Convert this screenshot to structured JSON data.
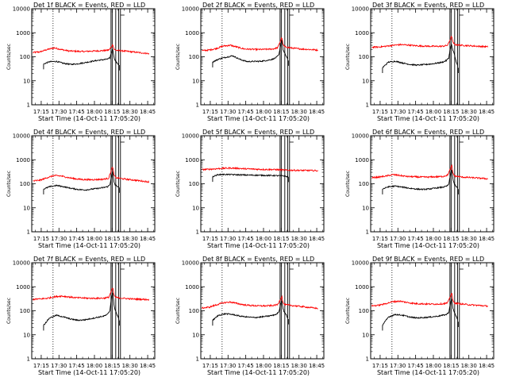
{
  "chart_data": {
    "type": "line",
    "layout": "3x3 grid of panels",
    "shared": {
      "xlabel": "Start Time (14-Oct-11 17:05:20)",
      "ylabel": "Counts/sec",
      "x_ticks": [
        "17:15",
        "17:30",
        "17:45",
        "18:00",
        "18:15",
        "18:30",
        "18:45"
      ],
      "x_tick_minutes": [
        15,
        30,
        45,
        60,
        75,
        90,
        105
      ],
      "xlim_minutes": [
        7,
        111
      ],
      "y_scale": "log",
      "ylim": [
        1,
        10000
      ],
      "y_ticks": [
        "1",
        "10",
        "100",
        "1000",
        "10000"
      ],
      "y_tick_values": [
        1,
        10,
        100,
        1000,
        10000
      ],
      "series_colors": {
        "events": "#000000",
        "lld": "#ff0000"
      },
      "marker_lines_minutes": [
        25,
        74,
        75,
        78,
        80.5,
        82
      ]
    },
    "panels": [
      {
        "title": "Det 1f BLACK = Events, RED = LLD",
        "events": {
          "x": [
            17,
            22,
            28,
            34,
            40,
            46,
            52,
            58,
            64,
            68,
            71,
            73,
            74.5,
            75.5,
            76.5,
            77.5,
            79,
            81
          ],
          "y": [
            50,
            62,
            64,
            53,
            48,
            51,
            57,
            65,
            72,
            76,
            80,
            88,
            160,
            210,
            95,
            70,
            55,
            45
          ]
        },
        "lld": {
          "x": [
            8,
            14,
            20,
            26,
            32,
            38,
            44,
            50,
            56,
            62,
            68,
            72,
            74.5,
            75.5,
            76.5,
            78,
            84,
            92,
            100,
            106
          ],
          "y": [
            150,
            160,
            200,
            235,
            200,
            175,
            170,
            165,
            170,
            175,
            180,
            190,
            260,
            330,
            210,
            185,
            175,
            160,
            145,
            135
          ]
        }
      },
      {
        "title": "Det 2f BLACK = Events, RED = LLD",
        "events": {
          "x": [
            17,
            22,
            28,
            34,
            40,
            46,
            52,
            58,
            64,
            68,
            71,
            73,
            74.5,
            75.5,
            76.5,
            77.5,
            79,
            81
          ],
          "y": [
            60,
            80,
            95,
            110,
            78,
            63,
            64,
            65,
            72,
            80,
            95,
            120,
            320,
            500,
            200,
            150,
            110,
            70
          ]
        },
        "lld": {
          "x": [
            8,
            14,
            20,
            26,
            32,
            38,
            44,
            50,
            56,
            62,
            68,
            72,
            74.5,
            75.5,
            76.5,
            78,
            84,
            92,
            100,
            106
          ],
          "y": [
            180,
            190,
            220,
            280,
            300,
            250,
            210,
            205,
            200,
            205,
            210,
            240,
            480,
            640,
            320,
            260,
            230,
            210,
            200,
            190
          ]
        }
      },
      {
        "title": "Det 3f BLACK = Events, RED = LLD",
        "events": {
          "x": [
            17,
            22,
            28,
            34,
            40,
            46,
            52,
            58,
            64,
            68,
            71,
            73,
            74.5,
            75.5,
            76.5,
            77.5,
            79,
            81
          ],
          "y": [
            35,
            60,
            65,
            55,
            48,
            45,
            47,
            50,
            55,
            60,
            70,
            90,
            260,
            300,
            180,
            140,
            70,
            35
          ]
        },
        "lld": {
          "x": [
            8,
            14,
            20,
            26,
            32,
            38,
            44,
            50,
            56,
            62,
            68,
            72,
            74.5,
            75.5,
            76.5,
            78,
            84,
            92,
            100,
            106
          ],
          "y": [
            250,
            255,
            275,
            300,
            320,
            310,
            290,
            280,
            275,
            270,
            275,
            300,
            560,
            720,
            400,
            320,
            300,
            285,
            270,
            260
          ]
        }
      },
      {
        "title": "Det 4f BLACK = Events, RED = LLD",
        "events": {
          "x": [
            17,
            22,
            28,
            34,
            40,
            46,
            52,
            58,
            64,
            68,
            71,
            73,
            74.5,
            75.5,
            76.5,
            77.5,
            79,
            81
          ],
          "y": [
            60,
            75,
            85,
            75,
            65,
            58,
            55,
            60,
            65,
            70,
            75,
            90,
            220,
            300,
            120,
            90,
            80,
            70
          ]
        },
        "lld": {
          "x": [
            8,
            14,
            20,
            26,
            32,
            38,
            44,
            50,
            56,
            62,
            68,
            72,
            74.5,
            75.5,
            76.5,
            78,
            84,
            92,
            100,
            106
          ],
          "y": [
            130,
            140,
            180,
            220,
            210,
            180,
            160,
            150,
            148,
            150,
            155,
            170,
            400,
            500,
            230,
            180,
            160,
            145,
            130,
            120
          ]
        }
      },
      {
        "title": "Det 5f BLACK = Events, RED = LLD",
        "events": {
          "x": [
            17,
            22,
            28,
            34,
            40,
            46,
            52,
            58,
            64,
            68,
            71,
            73,
            74.5,
            75.5,
            76.5,
            77.5,
            79,
            81
          ],
          "y": [
            200,
            240,
            245,
            240,
            235,
            230,
            228,
            225,
            222,
            220,
            218,
            216,
            215,
            214,
            213,
            212,
            200,
            195
          ]
        },
        "lld": {
          "x": [
            8,
            14,
            20,
            26,
            32,
            38,
            44,
            50,
            56,
            62,
            68,
            72,
            74.5,
            75.5,
            76.5,
            78,
            84,
            92,
            100,
            106
          ],
          "y": [
            390,
            400,
            420,
            440,
            450,
            440,
            420,
            410,
            400,
            395,
            390,
            385,
            380,
            378,
            375,
            370,
            365,
            360,
            355,
            350
          ]
        }
      },
      {
        "title": "Det 6f BLACK = Events, RED = LLD",
        "events": {
          "x": [
            17,
            22,
            28,
            34,
            40,
            46,
            52,
            58,
            64,
            68,
            71,
            73,
            74.5,
            75.5,
            76.5,
            77.5,
            79,
            81
          ],
          "y": [
            60,
            75,
            80,
            72,
            65,
            60,
            58,
            62,
            68,
            72,
            78,
            95,
            250,
            400,
            160,
            100,
            80,
            60
          ]
        },
        "lld": {
          "x": [
            8,
            14,
            20,
            26,
            32,
            38,
            44,
            50,
            56,
            62,
            68,
            72,
            74.5,
            75.5,
            76.5,
            78,
            84,
            92,
            100,
            106
          ],
          "y": [
            180,
            190,
            210,
            240,
            220,
            200,
            195,
            190,
            190,
            195,
            200,
            230,
            420,
            580,
            280,
            210,
            190,
            180,
            170,
            160
          ]
        }
      },
      {
        "title": "Det 7f BLACK = Events, RED = LLD",
        "events": {
          "x": [
            17,
            22,
            28,
            34,
            40,
            46,
            52,
            58,
            64,
            68,
            71,
            73,
            74.5,
            75.5,
            76.5,
            77.5,
            79,
            81
          ],
          "y": [
            25,
            50,
            65,
            55,
            45,
            40,
            42,
            48,
            55,
            60,
            70,
            100,
            400,
            550,
            180,
            110,
            70,
            40
          ]
        },
        "lld": {
          "x": [
            8,
            14,
            20,
            26,
            32,
            38,
            44,
            50,
            56,
            62,
            68,
            72,
            74.5,
            75.5,
            76.5,
            78,
            84,
            92,
            100,
            106
          ],
          "y": [
            300,
            310,
            330,
            380,
            410,
            380,
            350,
            340,
            330,
            330,
            335,
            360,
            700,
            900,
            450,
            360,
            330,
            310,
            300,
            290
          ]
        }
      },
      {
        "title": "Det 8f BLACK = Events, RED = LLD",
        "events": {
          "x": [
            17,
            22,
            28,
            34,
            40,
            46,
            52,
            58,
            64,
            68,
            71,
            73,
            74.5,
            75.5,
            76.5,
            77.5,
            79,
            81
          ],
          "y": [
            40,
            65,
            75,
            70,
            60,
            55,
            52,
            55,
            60,
            65,
            72,
            90,
            200,
            260,
            120,
            90,
            70,
            45
          ]
        },
        "lld": {
          "x": [
            8,
            14,
            20,
            26,
            32,
            38,
            44,
            50,
            56,
            62,
            68,
            72,
            74.5,
            75.5,
            76.5,
            78,
            84,
            92,
            100,
            106
          ],
          "y": [
            130,
            140,
            175,
            215,
            230,
            200,
            175,
            165,
            160,
            160,
            165,
            180,
            320,
            400,
            210,
            180,
            165,
            150,
            135,
            125
          ]
        }
      },
      {
        "title": "Det 9f BLACK = Events, RED = LLD",
        "events": {
          "x": [
            17,
            22,
            28,
            34,
            40,
            46,
            52,
            58,
            64,
            68,
            71,
            73,
            74.5,
            75.5,
            76.5,
            77.5,
            79,
            81
          ],
          "y": [
            25,
            55,
            70,
            65,
            55,
            50,
            52,
            55,
            60,
            65,
            70,
            85,
            220,
            300,
            130,
            90,
            65,
            35
          ]
        },
        "lld": {
          "x": [
            8,
            14,
            20,
            26,
            32,
            38,
            44,
            50,
            56,
            62,
            68,
            72,
            74.5,
            75.5,
            76.5,
            78,
            84,
            92,
            100,
            106
          ],
          "y": [
            160,
            170,
            200,
            240,
            250,
            220,
            200,
            195,
            190,
            190,
            195,
            210,
            420,
            560,
            260,
            210,
            190,
            175,
            165,
            155
          ]
        }
      }
    ]
  }
}
